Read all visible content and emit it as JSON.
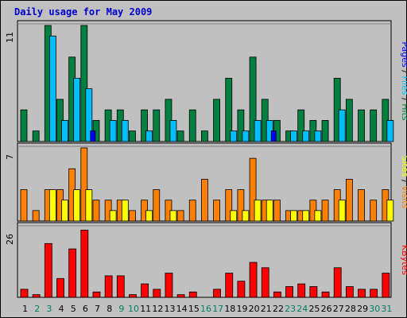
{
  "chart_data": {
    "type": "bar",
    "title": "Daily usage for May 2009",
    "days": [
      "1",
      "2",
      "3",
      "4",
      "5",
      "6",
      "7",
      "8",
      "9",
      "10",
      "11",
      "12",
      "13",
      "14",
      "15",
      "16",
      "17",
      "18",
      "19",
      "20",
      "21",
      "22",
      "23",
      "24",
      "25",
      "26",
      "27",
      "28",
      "29",
      "30",
      "31"
    ],
    "weekend_days": [
      "2",
      "3",
      "9",
      "10",
      "16",
      "17",
      "23",
      "24",
      "30",
      "31"
    ],
    "panels": [
      {
        "name": "hits-files-pages",
        "ymax": 11,
        "ytick_label": "11",
        "right_label": [
          "Pages",
          "Files",
          "Hits"
        ],
        "series": [
          {
            "name": "Hits",
            "color": "#008040",
            "values": [
              3,
              1,
              11,
              4,
              8,
              11,
              2,
              3,
              3,
              1,
              3,
              3,
              4,
              1,
              3,
              1,
              4,
              6,
              3,
              8,
              4,
              2,
              1,
              3,
              2,
              2,
              6,
              4,
              3,
              3,
              4
            ]
          },
          {
            "name": "Files",
            "color": "#00bfff",
            "values": [
              0,
              0,
              10,
              2,
              6,
              5,
              0,
              2,
              2,
              0,
              1,
              0,
              2,
              0,
              0,
              0,
              0,
              1,
              1,
              2,
              2,
              0,
              1,
              1,
              1,
              0,
              3,
              0,
              0,
              0,
              2
            ]
          },
          {
            "name": "Pages",
            "color": "#0000ff",
            "values": [
              0,
              0,
              0,
              0,
              0,
              1,
              0,
              0,
              0,
              0,
              0,
              0,
              0,
              0,
              0,
              0,
              0,
              0,
              0,
              0,
              1,
              0,
              0,
              0,
              0,
              0,
              0,
              0,
              0,
              0,
              0
            ]
          }
        ]
      },
      {
        "name": "visits-sites",
        "ymax": 7,
        "ytick_label": "7",
        "right_label": [
          "Sites",
          "Visits"
        ],
        "series": [
          {
            "name": "Visits",
            "color": "#ff8000",
            "values": [
              3,
              1,
              3,
              3,
              5,
              7,
              2,
              2,
              2,
              1,
              2,
              3,
              2,
              1,
              2,
              4,
              2,
              3,
              3,
              6,
              2,
              2,
              1,
              1,
              2,
              2,
              3,
              4,
              3,
              2,
              3
            ]
          },
          {
            "name": "Sites",
            "color": "#ffff00",
            "values": [
              0,
              0,
              3,
              2,
              3,
              3,
              0,
              1,
              2,
              0,
              1,
              0,
              1,
              0,
              0,
              0,
              0,
              1,
              1,
              2,
              2,
              0,
              1,
              1,
              1,
              0,
              2,
              0,
              0,
              0,
              2
            ]
          }
        ]
      },
      {
        "name": "kbytes",
        "ymax": 26,
        "ytick_label": "26",
        "right_label": [
          "KBytes"
        ],
        "series": [
          {
            "name": "KBytes",
            "color": "#ff0000",
            "values": [
              3,
              1,
              20,
              7,
              18,
              25,
              2,
              8,
              8,
              1,
              5,
              3,
              9,
              1,
              2,
              0,
              3,
              9,
              6,
              13,
              11,
              2,
              4,
              5,
              4,
              2,
              11,
              4,
              3,
              3,
              9
            ]
          }
        ]
      }
    ]
  },
  "colors": {
    "background": "#c0c0c0",
    "title": "#0000cc",
    "weekday_label": "#000000",
    "weekend_label": "#00805f",
    "separator_slash": "#000000"
  }
}
